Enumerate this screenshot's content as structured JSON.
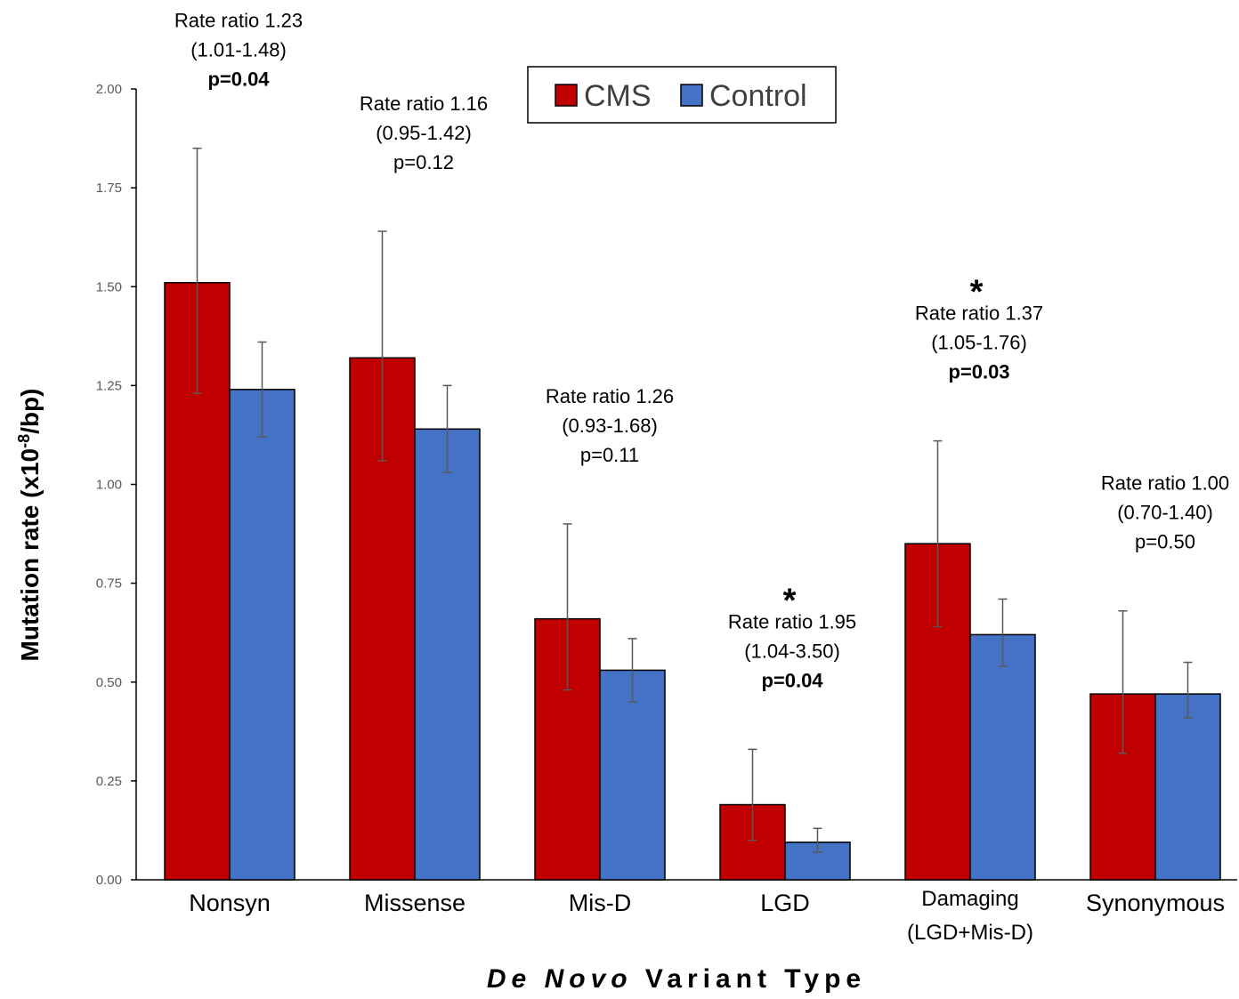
{
  "chart_data": {
    "type": "bar",
    "xlabel_italic": "De Novo",
    "xlabel_rest": "Variant Type",
    "ylabel_main": "Mutation rate (x10",
    "ylabel_sup": "-8",
    "ylabel_end": "/bp)",
    "ylim": [
      0,
      2.0
    ],
    "yticks": [
      "0.00",
      "0.25",
      "0.50",
      "0.75",
      "1.00",
      "1.25",
      "1.50",
      "1.75",
      "2.00"
    ],
    "categories": [
      {
        "lines": [
          "Nonsyn"
        ]
      },
      {
        "lines": [
          "Missense"
        ]
      },
      {
        "lines": [
          "Mis-D"
        ]
      },
      {
        "lines": [
          "LGD"
        ]
      },
      {
        "lines": [
          "Damaging",
          "(LGD+Mis-D)"
        ]
      },
      {
        "lines": [
          "Synonymous"
        ]
      }
    ],
    "series": [
      {
        "name": "CMS",
        "color": "#c00000",
        "values": [
          1.51,
          1.32,
          0.66,
          0.19,
          0.85,
          0.47
        ],
        "err_low": [
          1.23,
          1.06,
          0.48,
          0.1,
          0.64,
          0.32
        ],
        "err_high": [
          1.85,
          1.64,
          0.9,
          0.33,
          1.11,
          0.68
        ]
      },
      {
        "name": "Control",
        "color": "#4472c4",
        "values": [
          1.24,
          1.14,
          0.53,
          0.095,
          0.62,
          0.47
        ],
        "err_low": [
          1.12,
          1.03,
          0.45,
          0.07,
          0.54,
          0.41
        ],
        "err_high": [
          1.36,
          1.25,
          0.61,
          0.13,
          0.71,
          0.55
        ]
      }
    ],
    "annotations": [
      {
        "star": true,
        "ratio": "Rate ratio 1.23",
        "ci": "(1.01-1.48)",
        "p": "p=0.04",
        "p_bold": true
      },
      {
        "star": false,
        "ratio": "Rate ratio 1.16",
        "ci": "(0.95-1.42)",
        "p": "p=0.12",
        "p_bold": false
      },
      {
        "star": false,
        "ratio": "Rate ratio 1.26",
        "ci": "(0.93-1.68)",
        "p": "p=0.11",
        "p_bold": false
      },
      {
        "star": true,
        "ratio": "Rate ratio 1.95",
        "ci": "(1.04-3.50)",
        "p": "p=0.04",
        "p_bold": true
      },
      {
        "star": true,
        "ratio": "Rate ratio 1.37",
        "ci": "(1.05-1.76)",
        "p": "p=0.03",
        "p_bold": true
      },
      {
        "star": false,
        "ratio": "Rate ratio 1.00",
        "ci": "(0.70-1.40)",
        "p": "p=0.50",
        "p_bold": false
      }
    ],
    "star_symbol": "*",
    "legend_position": "top-center",
    "grid": false
  }
}
